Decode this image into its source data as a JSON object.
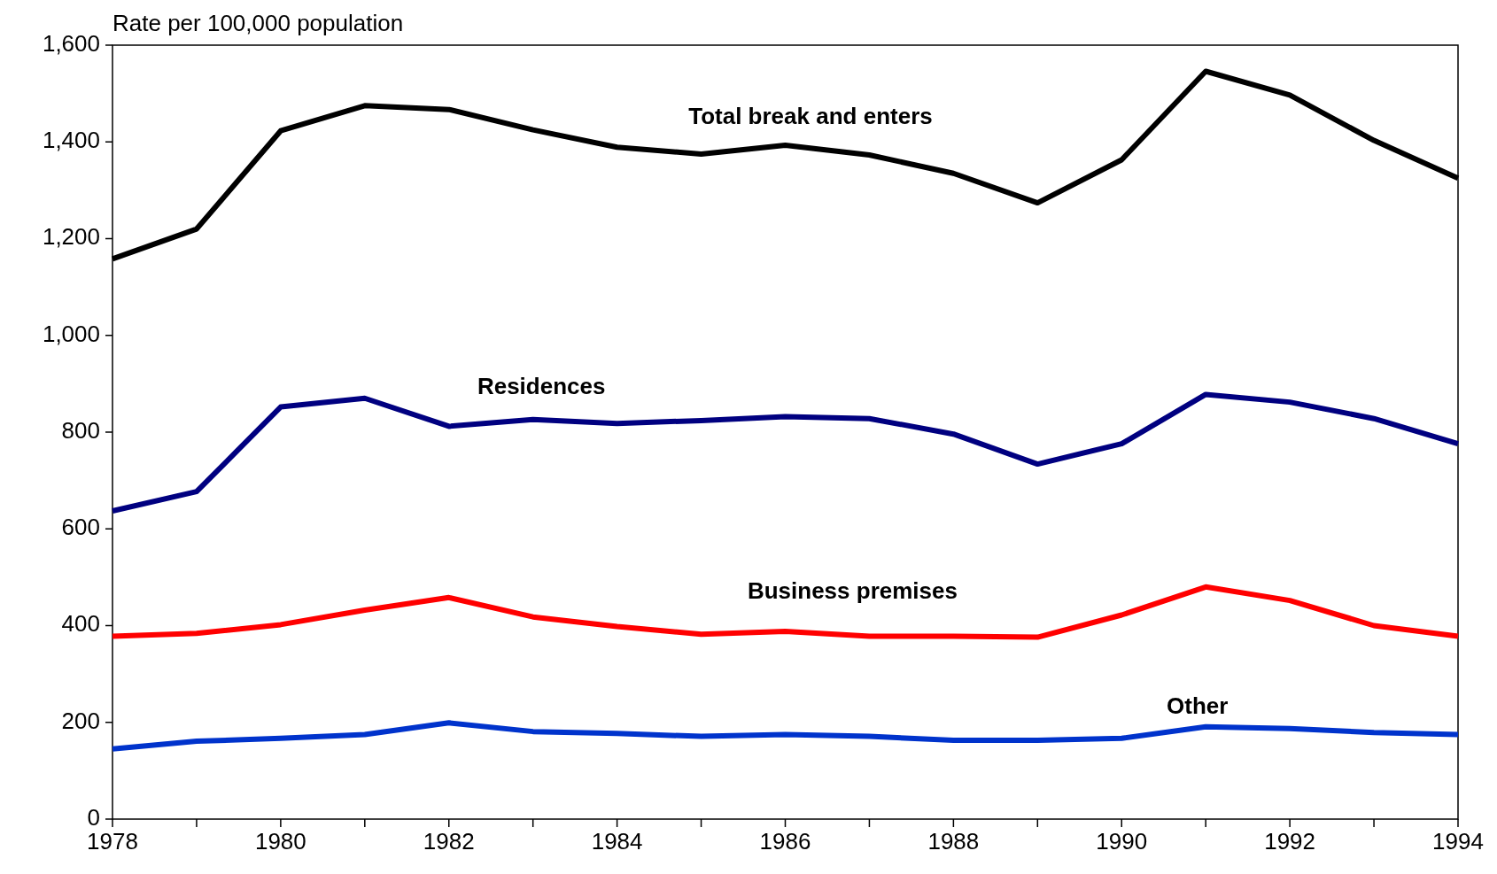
{
  "chart_data": {
    "type": "line",
    "ylabel": "Rate per 100,000 population",
    "x": [
      1978,
      1979,
      1980,
      1981,
      1982,
      1983,
      1984,
      1985,
      1986,
      1987,
      1988,
      1989,
      1990,
      1991,
      1992,
      1993,
      1994
    ],
    "xlim": [
      1978,
      1994
    ],
    "xticks": [
      1978,
      {
        "value": 1979,
        "label": null
      },
      1980,
      {
        "value": 1981,
        "label": null
      },
      1982,
      {
        "value": 1983,
        "label": null
      },
      1984,
      {
        "value": 1985,
        "label": null
      },
      1986,
      {
        "value": 1987,
        "label": null
      },
      1988,
      {
        "value": 1989,
        "label": null
      },
      1990,
      {
        "value": 1991,
        "label": null
      },
      1992,
      {
        "value": 1993,
        "label": null
      },
      1994
    ],
    "ylim": [
      0,
      1600
    ],
    "yticks": [
      0,
      200,
      400,
      600,
      800,
      {
        "value": 1000,
        "label": "1,000"
      },
      {
        "value": 1200,
        "label": "1,200"
      },
      {
        "value": 1400,
        "label": "1,400"
      },
      {
        "value": 1600,
        "label": "1,600"
      }
    ],
    "grid": false,
    "marker": "none",
    "line_style": "solid",
    "series": [
      {
        "name": "Total break and enters",
        "color": "#000000",
        "values": [
          1158,
          1220,
          1423,
          1475,
          1467,
          1425,
          1389,
          1375,
          1393,
          1373,
          1335,
          1274,
          1363,
          1546,
          1497,
          1403,
          1325
        ]
      },
      {
        "name": "Residences",
        "color": "#000080",
        "values": [
          637,
          677,
          852,
          870,
          812,
          826,
          818,
          824,
          832,
          828,
          796,
          734,
          776,
          878,
          862,
          828,
          776
        ]
      },
      {
        "name": "Business premises",
        "color": "#ff0000",
        "values": [
          378,
          384,
          402,
          432,
          458,
          418,
          398,
          382,
          388,
          378,
          378,
          376,
          422,
          480,
          452,
          400,
          378
        ]
      },
      {
        "name": "Other",
        "color": "#0033cc",
        "values": [
          145,
          161,
          167,
          175,
          199,
          181,
          177,
          171,
          175,
          171,
          163,
          163,
          167,
          191,
          187,
          179,
          175
        ]
      }
    ]
  }
}
